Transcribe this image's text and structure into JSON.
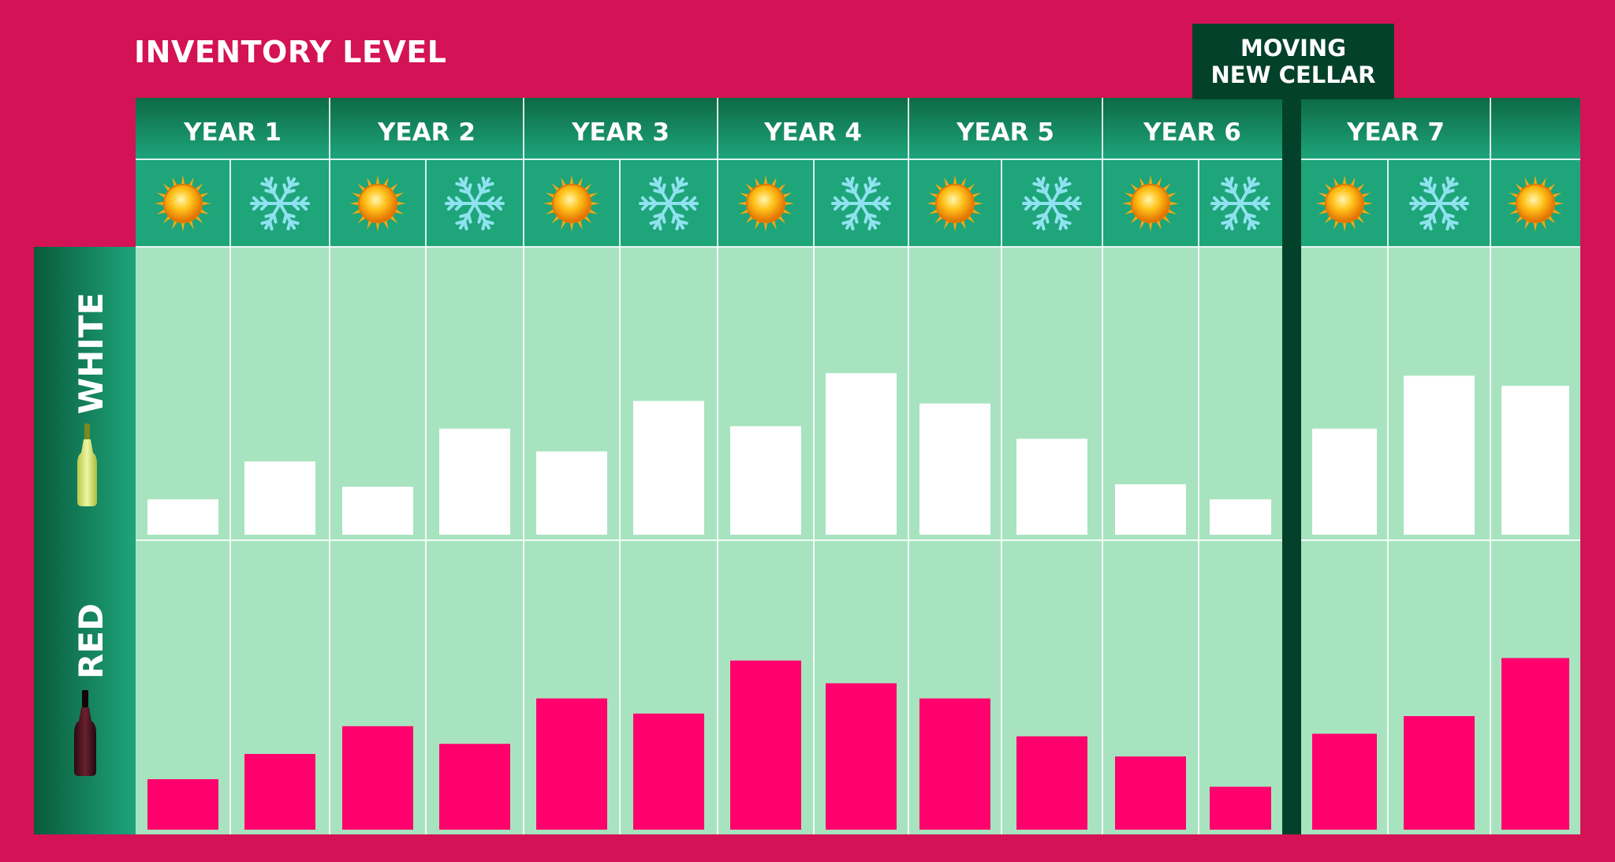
{
  "header": {
    "title": "INVENTORY LEVEL",
    "moving_line1": "MOVING",
    "moving_line2": "NEW CELLAR"
  },
  "colors": {
    "background": "#d41256",
    "header_dark": "#0d6a47",
    "header_light": "#1ea57a",
    "plot_bg": "#a8e3c0",
    "white_bar": "#ffffff",
    "red_bar": "#ff006c",
    "divider": "#03412a"
  },
  "icons": {
    "summer": "sun-icon",
    "winter": "snowflake-icon"
  },
  "chart_data": {
    "type": "bar",
    "title": "INVENTORY LEVEL",
    "years": [
      "YEAR 1",
      "YEAR 2",
      "YEAR 3",
      "YEAR 4",
      "YEAR 5",
      "YEAR 6",
      "YEAR 7",
      ""
    ],
    "categories": [
      "Y1 Summer",
      "Y1 Winter",
      "Y2 Summer",
      "Y2 Winter",
      "Y3 Summer",
      "Y3 Winter",
      "Y4 Summer",
      "Y4 Winter",
      "Y5 Summer",
      "Y5 Winter",
      "Y6 Summer",
      "Y6 Winter",
      "Y7 Summer",
      "Y7 Winter",
      "Y8 Summer"
    ],
    "seasons": [
      "summer",
      "winter",
      "summer",
      "winter",
      "summer",
      "winter",
      "summer",
      "winter",
      "summer",
      "winter",
      "summer",
      "winter",
      "summer",
      "winter",
      "summer"
    ],
    "series": [
      {
        "name": "WHITE",
        "values": [
          14,
          29,
          19,
          42,
          33,
          53,
          43,
          64,
          52,
          38,
          20,
          14,
          42,
          63,
          59
        ]
      },
      {
        "name": "RED",
        "values": [
          20,
          30,
          41,
          34,
          52,
          46,
          67,
          58,
          52,
          37,
          29,
          17,
          38,
          45,
          68
        ]
      }
    ],
    "ylim": [
      0,
      100
    ],
    "annotation": "MOVING NEW CELLAR"
  }
}
